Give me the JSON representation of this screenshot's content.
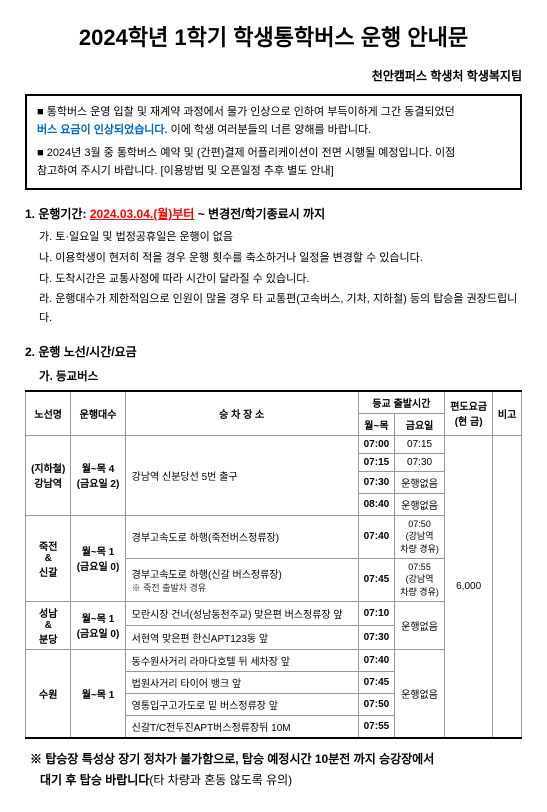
{
  "title": "2024학년 1학기 학생통학버스 운행 안내문",
  "subtitle": "천안캠퍼스 학생처 학생복지팀",
  "notice1_line1": "■ 통학버스 운영 입찰 및 재계약 과정에서 물가 인상으로 인하여 부득이하게 그간 동결되었던",
  "notice1_line2_blue": "버스 요금이 인상되었습니다.",
  "notice1_line2_rest": " 이에 학생 여러분들의 너른 양해를 바랍니다.",
  "notice2_line1": "■ 2024년 3월 중 통학버스 예약 및 (간편)결제 어플리케이션이 전면 시행될 예정입니다. 이점",
  "notice2_line2": "참고하여 주시기 바랍니다. [이용방법 및 오픈일정 추후 별도 안내]",
  "section1": {
    "heading": "1. 운행기간: ",
    "period_red": "2024.03.04.(월)부터",
    "period_rest": " ~ 변경전/학기종료시 까지",
    "items": [
      "가. 토·일요일 및 법정공휴일은 운행이 없음",
      "나. 이용학생이 현저히 적을 경우 운행 횟수를 축소하거나 일정을 변경할 수 있습니다.",
      "다. 도착시간은 교통사정에 따라 시간이 달라질 수 있습니다.",
      "라. 운행대수가 제한적임으로 인원이 많을 경우 타 교통편(고속버스, 기차, 지하철) 등의 탑승을 권장드립니다."
    ]
  },
  "section2": {
    "heading": "2. 운행 노선/시간/요금",
    "sub_a": "가. 등교버스"
  },
  "table": {
    "headers": {
      "route": "노선명",
      "count": "운행대수",
      "stop": "승 차 장 소",
      "depart_group": "등교 출발시간",
      "mon_thu": "월~목",
      "fri": "금요일",
      "fare": "편도요금\n(현 금)",
      "note": "비고"
    },
    "gangnam": {
      "route_name": "(지하철)\n강남역",
      "count": "월~목 4\n(금요일 2)",
      "stop": "강남역 신분당선 5번 출구",
      "times": [
        {
          "mt": "07:00",
          "fri": "07:15"
        },
        {
          "mt": "07:15",
          "fri": "07:30"
        },
        {
          "mt": "07:30",
          "fri": "운행없음"
        },
        {
          "mt": "08:40",
          "fri": "운행없음"
        }
      ]
    },
    "jukjeon": {
      "route_name": "죽전\n&\n신갈",
      "count": "월~목 1\n(금요일 0)",
      "stop1": "경부고속도로 하행(죽전버스정류장)",
      "time1_mt": "07:40",
      "time1_fri": "07:50\n(강남역\n차량 경유)",
      "stop2": "경부고속도로 하행(신갈 버스정류장)",
      "stop2_note": "※ 죽전 출발차 경유",
      "time2_mt": "07:45",
      "time2_fri": "07:55\n(강남역\n차량 경유)"
    },
    "seongnam": {
      "route_name": "성남\n&\n분당",
      "count": "월~목 1\n(금요일 0)",
      "stop1": "모란시장 건너(성남동천주교) 맞은편 버스정류장 앞",
      "time1_mt": "07:10",
      "time1_fri": "운행없음",
      "stop2": "서현역 맞은편 한신APT123동 앞",
      "time2_mt": "07:30"
    },
    "suwon": {
      "route_name": "수원",
      "count": "월~목 1",
      "stops": [
        {
          "stop": "동수원사거리 라마다호텔 뒤 세차장 앞",
          "mt": "07:40"
        },
        {
          "stop": "법원사거리 타이어 뱅크 앞",
          "mt": "07:45"
        },
        {
          "stop": "영통입구고가도로 밑 버스정류장 앞",
          "mt": "07:50"
        },
        {
          "stop": "신갈T/C전두진APT버스정류장뒤 10M",
          "mt": "07:55"
        }
      ],
      "fri": "운행없음"
    },
    "fare": "6,000"
  },
  "footer": {
    "line1": "※ 탑승장 특성상 장기 정차가 불가함으로, 탑승 예정시간 10분전 까지 승강장에서",
    "line2_bold": "대기 후 탑승 바랍니다",
    "line2_rest": "(타 차량과 혼동 않도록 유의)"
  }
}
